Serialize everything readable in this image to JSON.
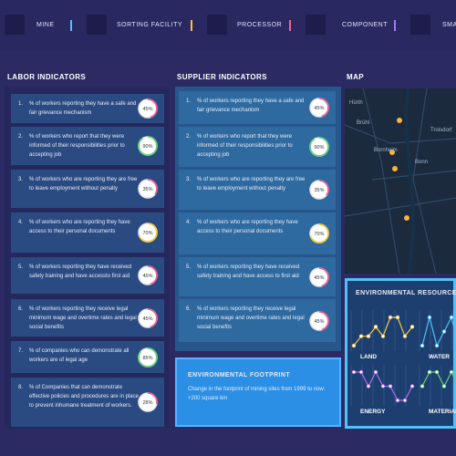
{
  "nav": [
    {
      "label": "MINE",
      "color": "#4fc3f7"
    },
    {
      "label": "SORTING FACILITY",
      "color": "#f5c542"
    },
    {
      "label": "PROCESSOR",
      "color": "#f06292"
    },
    {
      "label": "COMPONENT",
      "color": "#9c7cf4"
    },
    {
      "label": "SMA",
      "color": "#4fc3f7"
    }
  ],
  "labor": {
    "title": "LABOR INDICATORS",
    "items": [
      {
        "num": "1.",
        "text": "% of workers reporting they have a safe and fair grievance mechanism",
        "value": 45,
        "label": "45%",
        "color": "#f06292"
      },
      {
        "num": "2.",
        "text": "% of workers who report that they were informed of their responsibilities prior to accepting job",
        "value": 90,
        "label": "90%",
        "color": "#66d17a"
      },
      {
        "num": "3.",
        "text": "% of workers who are reporting they are free to leave employment without penalty",
        "value": 35,
        "label": "35%",
        "color": "#f06292"
      },
      {
        "num": "4.",
        "text": "% of workers who are reporting they have access to their personal documents",
        "value": 70,
        "label": "70%",
        "color": "#f5c542"
      },
      {
        "num": "5.",
        "text": "% of workers reporting they have received safety training and have accessto first aid",
        "value": 45,
        "label": "45%",
        "color": "#f06292"
      },
      {
        "num": "6.",
        "text": "% of workers reporting they receive legal minimum wage and overtime rates and legal social benefits",
        "value": 45,
        "label": "45%",
        "color": "#f06292"
      },
      {
        "num": "7.",
        "text": "% of companies who can demonstrate all workers are of legal age",
        "value": 85,
        "label": "85%",
        "color": "#66d17a"
      },
      {
        "num": "8.",
        "text": "% of Companies that can demonstrate effective policies and procedures are in place to prevent inhumane treatment of workers.",
        "value": 28,
        "label": "28%",
        "color": "#f06292"
      }
    ]
  },
  "supplier": {
    "title": "SUPPLIER INDICATORS",
    "items": [
      {
        "num": "1.",
        "text": "% of workers reporting they have a safe and fair grievance mechanism",
        "value": 45,
        "label": "45%",
        "color": "#f06292"
      },
      {
        "num": "2.",
        "text": "% of workers who report that they were informed of their responsibilities prior to accepting job",
        "value": 90,
        "label": "90%",
        "color": "#66d17a"
      },
      {
        "num": "3.",
        "text": "% of workers who are reporting they are free to leave employment without penalty",
        "value": 35,
        "label": "35%",
        "color": "#f06292"
      },
      {
        "num": "4.",
        "text": "% of workers who are reporting they have access to their personal documents",
        "value": 70,
        "label": "70%",
        "color": "#f5c542"
      },
      {
        "num": "5.",
        "text": "% of workers reporting they have received safety training and have access to first aid",
        "value": 45,
        "label": "45%",
        "color": "#f06292"
      },
      {
        "num": "6.",
        "text": "% of workers reporting they receive legal minimum wage and overtime rates and legal social benefits",
        "value": 45,
        "label": "45%",
        "color": "#f06292"
      }
    ]
  },
  "map": {
    "title": "MAP",
    "places": [
      "Hürth",
      "Brühl",
      "Troisdorf",
      "Bornheim",
      "Bonn"
    ]
  },
  "footprint": {
    "title": "ENVIRONMENTAL FOOTPRINT",
    "text": "Change in the footprint of mining sites from 1999 to now: +200 square km"
  },
  "resource": {
    "title": "ENVIRONMENTAL RESOURCE U",
    "charts": [
      {
        "name": "LAND",
        "color": "#f5c542",
        "values": [
          3,
          4,
          4,
          5,
          4,
          6,
          6,
          4,
          5
        ]
      },
      {
        "name": "WATER",
        "color": "#4fc3f7",
        "values": [
          3,
          5,
          3,
          4,
          5,
          3,
          4,
          5,
          4
        ]
      },
      {
        "name": "ENERGY",
        "color": "#b36bf0",
        "values": [
          5,
          5,
          4,
          5,
          4,
          4,
          3,
          3,
          4
        ]
      },
      {
        "name": "MATERIAL",
        "color": "#66d17a",
        "values": [
          4,
          5,
          5,
          4,
          5,
          4,
          4,
          5,
          3
        ]
      }
    ]
  }
}
